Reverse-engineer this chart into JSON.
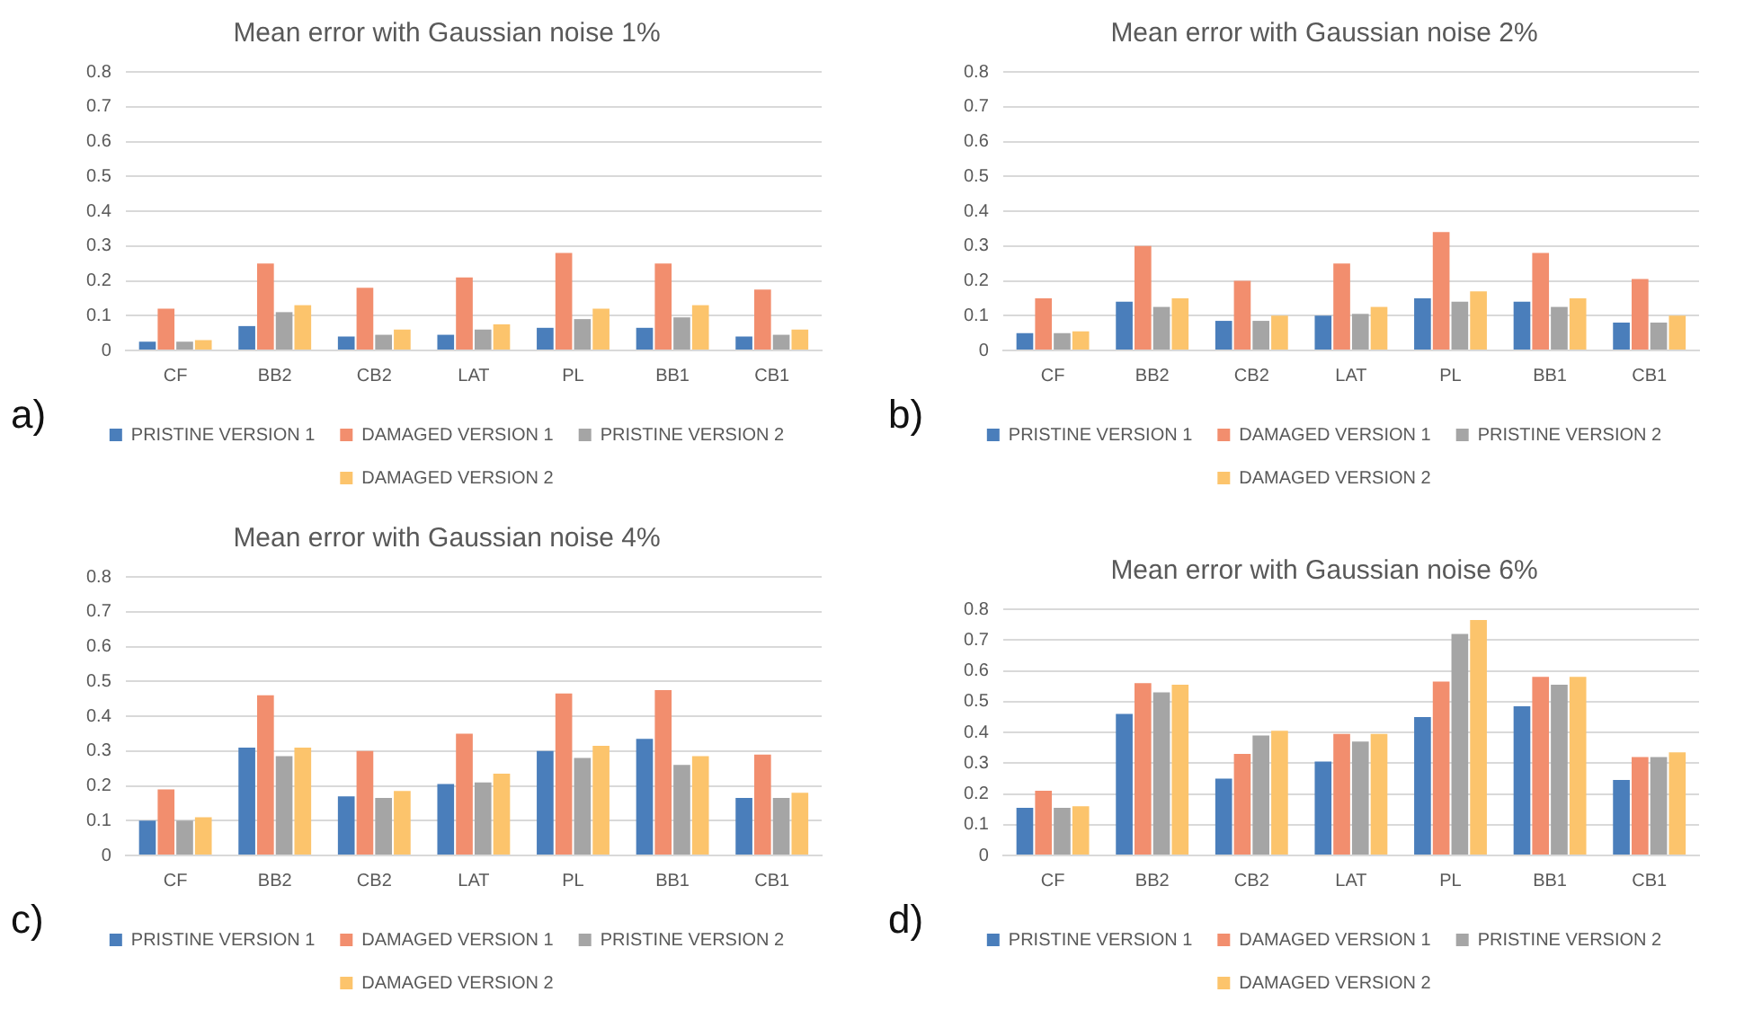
{
  "chart_data": [
    {
      "type": "bar",
      "title": "Mean error with Gaussian noise 1%",
      "categories": [
        "CF",
        "BB2",
        "CB2",
        "LAT",
        "PL",
        "BB1",
        "CB1"
      ],
      "series": [
        {
          "name": "PRISTINE VERSION 1",
          "color": "#4a7ebb",
          "values": [
            0.025,
            0.07,
            0.04,
            0.045,
            0.065,
            0.065,
            0.04
          ]
        },
        {
          "name": "DAMAGED VERSION 1",
          "color": "#f28e6e",
          "values": [
            0.12,
            0.25,
            0.18,
            0.21,
            0.28,
            0.25,
            0.175
          ]
        },
        {
          "name": "PRISTINE VERSION 2",
          "color": "#a5a5a5",
          "values": [
            0.025,
            0.11,
            0.045,
            0.06,
            0.09,
            0.095,
            0.045
          ]
        },
        {
          "name": "DAMAGED VERSION 2",
          "color": "#fcc46c",
          "values": [
            0.03,
            0.13,
            0.06,
            0.075,
            0.12,
            0.13,
            0.06
          ]
        }
      ],
      "ylim": [
        0,
        0.8
      ],
      "yticks": [
        0,
        0.1,
        0.2,
        0.3,
        0.4,
        0.5,
        0.6,
        0.7,
        0.8
      ],
      "grid": "y",
      "legend": "bottom",
      "annotations": [
        "a)"
      ]
    },
    {
      "type": "bar",
      "title": "Mean error with Gaussian noise 2%",
      "categories": [
        "CF",
        "BB2",
        "CB2",
        "LAT",
        "PL",
        "BB1",
        "CB1"
      ],
      "series": [
        {
          "name": "PRISTINE VERSION 1",
          "color": "#4a7ebb",
          "values": [
            0.05,
            0.14,
            0.085,
            0.1,
            0.15,
            0.14,
            0.08
          ]
        },
        {
          "name": "DAMAGED VERSION 1",
          "color": "#f28e6e",
          "values": [
            0.15,
            0.3,
            0.2,
            0.25,
            0.34,
            0.28,
            0.205
          ]
        },
        {
          "name": "PRISTINE VERSION 2",
          "color": "#a5a5a5",
          "values": [
            0.05,
            0.125,
            0.085,
            0.105,
            0.14,
            0.125,
            0.08
          ]
        },
        {
          "name": "DAMAGED VERSION 2",
          "color": "#fcc46c",
          "values": [
            0.055,
            0.15,
            0.1,
            0.125,
            0.17,
            0.15,
            0.1
          ]
        }
      ],
      "ylim": [
        0,
        0.8
      ],
      "yticks": [
        0,
        0.1,
        0.2,
        0.3,
        0.4,
        0.5,
        0.6,
        0.7,
        0.8
      ],
      "grid": "y",
      "legend": "bottom",
      "annotations": [
        "b)"
      ]
    },
    {
      "type": "bar",
      "title": "Mean error with Gaussian noise 4%",
      "categories": [
        "CF",
        "BB2",
        "CB2",
        "LAT",
        "PL",
        "BB1",
        "CB1"
      ],
      "series": [
        {
          "name": "PRISTINE VERSION 1",
          "color": "#4a7ebb",
          "values": [
            0.1,
            0.31,
            0.17,
            0.205,
            0.3,
            0.335,
            0.165
          ]
        },
        {
          "name": "DAMAGED VERSION 1",
          "color": "#f28e6e",
          "values": [
            0.19,
            0.46,
            0.3,
            0.35,
            0.465,
            0.475,
            0.29
          ]
        },
        {
          "name": "PRISTINE VERSION 2",
          "color": "#a5a5a5",
          "values": [
            0.1,
            0.285,
            0.165,
            0.21,
            0.28,
            0.26,
            0.165
          ]
        },
        {
          "name": "DAMAGED VERSION 2",
          "color": "#fcc46c",
          "values": [
            0.11,
            0.31,
            0.185,
            0.235,
            0.315,
            0.285,
            0.18
          ]
        }
      ],
      "ylim": [
        0,
        0.8
      ],
      "yticks": [
        0,
        0.1,
        0.2,
        0.3,
        0.4,
        0.5,
        0.6,
        0.7,
        0.8
      ],
      "grid": "y",
      "legend": "bottom",
      "annotations": [
        "c)"
      ]
    },
    {
      "type": "bar",
      "title": "Mean error with Gaussian noise 6%",
      "categories": [
        "CF",
        "BB2",
        "CB2",
        "LAT",
        "PL",
        "BB1",
        "CB1"
      ],
      "series": [
        {
          "name": "PRISTINE VERSION 1",
          "color": "#4a7ebb",
          "values": [
            0.155,
            0.46,
            0.25,
            0.305,
            0.45,
            0.485,
            0.245
          ]
        },
        {
          "name": "DAMAGED VERSION 1",
          "color": "#f28e6e",
          "values": [
            0.21,
            0.56,
            0.33,
            0.395,
            0.565,
            0.58,
            0.32
          ]
        },
        {
          "name": "PRISTINE VERSION 2",
          "color": "#a5a5a5",
          "values": [
            0.155,
            0.53,
            0.39,
            0.37,
            0.72,
            0.555,
            0.32
          ]
        },
        {
          "name": "DAMAGED VERSION 2",
          "color": "#fcc46c",
          "values": [
            0.16,
            0.555,
            0.405,
            0.395,
            0.765,
            0.58,
            0.335
          ]
        }
      ],
      "ylim": [
        0,
        0.8
      ],
      "yticks": [
        0,
        0.1,
        0.2,
        0.3,
        0.4,
        0.5,
        0.6,
        0.7,
        0.8
      ],
      "grid": "y",
      "legend": "bottom",
      "annotations": [
        "d)"
      ]
    }
  ]
}
